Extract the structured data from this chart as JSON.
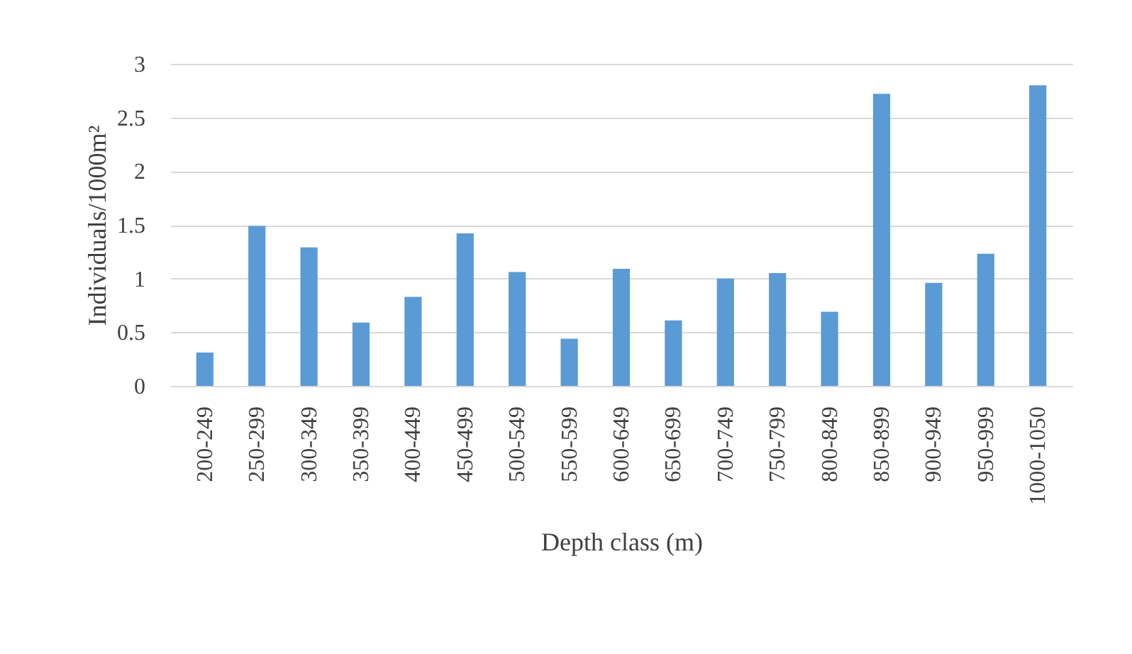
{
  "chart_data": {
    "type": "bar",
    "xlabel": "Depth class (m)",
    "ylabel": "Individuals/1000m²",
    "categories": [
      "200-249",
      "250-299",
      "300-349",
      "350-399",
      "400-449",
      "450-499",
      "500-549",
      "550-599",
      "600-649",
      "650-699",
      "700-749",
      "750-799",
      "800-849",
      "850-899",
      "900-949",
      "950-999",
      "1000-1050"
    ],
    "values": [
      0.31,
      1.49,
      1.29,
      0.59,
      0.83,
      1.42,
      1.06,
      0.44,
      1.09,
      0.61,
      1.0,
      1.05,
      0.69,
      2.72,
      0.96,
      1.23,
      2.8
    ],
    "color": "#5b9bd5",
    "ylim": [
      0,
      3
    ],
    "yticks": [
      0,
      0.5,
      1,
      1.5,
      2,
      2.5,
      3
    ],
    "grid": "y"
  }
}
